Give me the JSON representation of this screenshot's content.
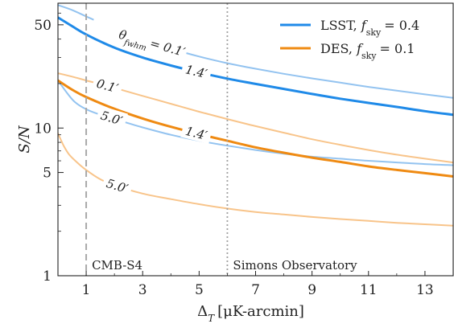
{
  "chart_data": {
    "type": "line",
    "xlabel": "Δ_T [μK-arcmin]",
    "ylabel": "S/N",
    "xlim": [
      0,
      14
    ],
    "ylim": [
      1,
      70
    ],
    "yscale": "log",
    "xticks": [
      1,
      3,
      5,
      7,
      9,
      11,
      13
    ],
    "xtick_labels": [
      "1",
      "3",
      "5",
      "7",
      "9",
      "11",
      "13"
    ],
    "yticks": [
      1,
      5,
      10,
      50
    ],
    "ytick_labels": [
      "1",
      "5",
      "10",
      "50"
    ],
    "grid": false,
    "legend_position": "top-right",
    "legend": [
      {
        "label": "LSST, f_sky = 0.4",
        "color": "#1f8ae8"
      },
      {
        "label": "DES,  f_sky = 0.1",
        "color": "#ef8a12"
      }
    ],
    "vlines": [
      {
        "x": 1,
        "label": "CMB-S4",
        "style": "dashed",
        "color": "#a8a8a8"
      },
      {
        "x": 6,
        "label": "Simons Observatory",
        "style": "dotted",
        "color": "#a0a0a0"
      }
    ],
    "curve_label_prefix": "θ_fwhm = ",
    "series": [
      {
        "survey": "LSST",
        "label": "0.1′",
        "color": "#93c3f0",
        "width": 2,
        "x": [
          0,
          0.5,
          1,
          2,
          3,
          4,
          5,
          6,
          7,
          8,
          9,
          10,
          11,
          12,
          13,
          14
        ],
        "y": [
          68,
          63,
          57,
          47,
          40,
          34.5,
          30.5,
          27.5,
          25.2,
          23.3,
          21.7,
          20.3,
          19.0,
          17.9,
          16.9,
          16.0
        ]
      },
      {
        "survey": "LSST",
        "label": "1.4′",
        "color": "#1f8ae8",
        "width": 3,
        "x": [
          0,
          0.5,
          1,
          2,
          3,
          4,
          5,
          6,
          7,
          8,
          9,
          10,
          11,
          12,
          13,
          14
        ],
        "y": [
          56,
          49,
          43,
          35,
          30,
          26.5,
          23.8,
          21.6,
          19.9,
          18.4,
          17.0,
          15.8,
          14.8,
          13.9,
          13.0,
          12.3
        ]
      },
      {
        "survey": "LSST",
        "label": "5.0′",
        "color": "#93c3f0",
        "width": 2,
        "x": [
          0,
          0.3,
          0.6,
          1,
          1.5,
          2,
          3,
          4,
          5,
          6,
          7,
          8,
          9,
          10,
          11,
          12,
          13,
          14
        ],
        "y": [
          21,
          17.5,
          15,
          13.4,
          12.3,
          11.5,
          10.1,
          9.0,
          8.2,
          7.6,
          7.1,
          6.7,
          6.4,
          6.2,
          6.0,
          5.85,
          5.7,
          5.6
        ]
      },
      {
        "survey": "DES",
        "label": "0.1′",
        "color": "#f8c48a",
        "width": 2,
        "x": [
          0,
          0.5,
          1,
          2,
          3,
          4,
          5,
          6,
          7,
          8,
          9,
          10,
          11,
          12,
          13,
          14
        ],
        "y": [
          23.5,
          22.3,
          21.0,
          18.7,
          16.5,
          14.6,
          12.9,
          11.5,
          10.3,
          9.3,
          8.4,
          7.7,
          7.1,
          6.6,
          6.2,
          5.85
        ]
      },
      {
        "survey": "DES",
        "label": "1.4′",
        "color": "#ef8a12",
        "width": 3,
        "x": [
          0,
          0.5,
          1,
          2,
          3,
          4,
          5,
          6,
          7,
          8,
          9,
          10,
          11,
          12,
          13,
          14
        ],
        "y": [
          21,
          18.2,
          16.2,
          13.5,
          11.6,
          10.2,
          9.1,
          8.2,
          7.4,
          6.8,
          6.3,
          5.9,
          5.5,
          5.2,
          4.95,
          4.7
        ]
      },
      {
        "survey": "DES",
        "label": "5.0′",
        "color": "#f8c48a",
        "width": 2,
        "x": [
          0,
          0.2,
          0.4,
          0.7,
          1,
          1.5,
          2,
          3,
          4,
          5,
          6,
          7,
          8,
          9,
          10,
          11,
          12,
          13,
          14
        ],
        "y": [
          9.2,
          7.6,
          6.6,
          5.8,
          5.2,
          4.5,
          4.1,
          3.6,
          3.3,
          3.05,
          2.85,
          2.7,
          2.6,
          2.5,
          2.42,
          2.35,
          2.28,
          2.23,
          2.18
        ]
      }
    ]
  }
}
